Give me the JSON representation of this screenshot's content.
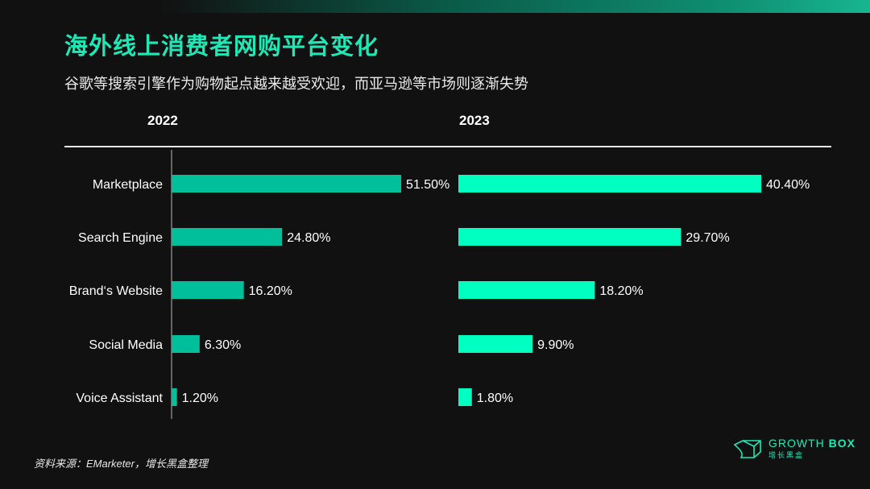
{
  "title": "海外线上消费者网购平台变化",
  "subtitle": "谷歌等搜索引擎作为购物起点越来越受欢迎，而亚马逊等市场则逐渐失势",
  "source": "资料来源：EMarketer，增长黑盒整理",
  "logo": {
    "en_light": "GROWTH",
    "en_bold": "BOX",
    "cn": "增长黑盒"
  },
  "colors": {
    "accent": "#1de9b6",
    "bar_2022": "#00bf9a",
    "bar_2023": "#00ffc0",
    "background": "#111111"
  },
  "chart_data": [
    {
      "type": "bar",
      "orientation": "horizontal",
      "title": "2022",
      "categories": [
        "Marketplace",
        "Search Engine",
        "Brand‘s Website",
        "Social Media",
        "Voice Assistant"
      ],
      "values": [
        51.5,
        24.8,
        16.2,
        6.3,
        1.2
      ],
      "labels": [
        "51.50%",
        "24.80%",
        "16.20%",
        "6.30%",
        "1.20%"
      ],
      "unit": "%",
      "grid": false
    },
    {
      "type": "bar",
      "orientation": "horizontal",
      "title": "2023",
      "categories": [
        "Marketplace",
        "Search Engine",
        "Brand‘s Website",
        "Social Media",
        "Voice Assistant"
      ],
      "values": [
        40.4,
        29.7,
        18.2,
        9.9,
        1.8
      ],
      "labels": [
        "40.40%",
        "29.70%",
        "18.20%",
        "9.90%",
        "1.80%"
      ],
      "unit": "%",
      "grid": false
    }
  ]
}
